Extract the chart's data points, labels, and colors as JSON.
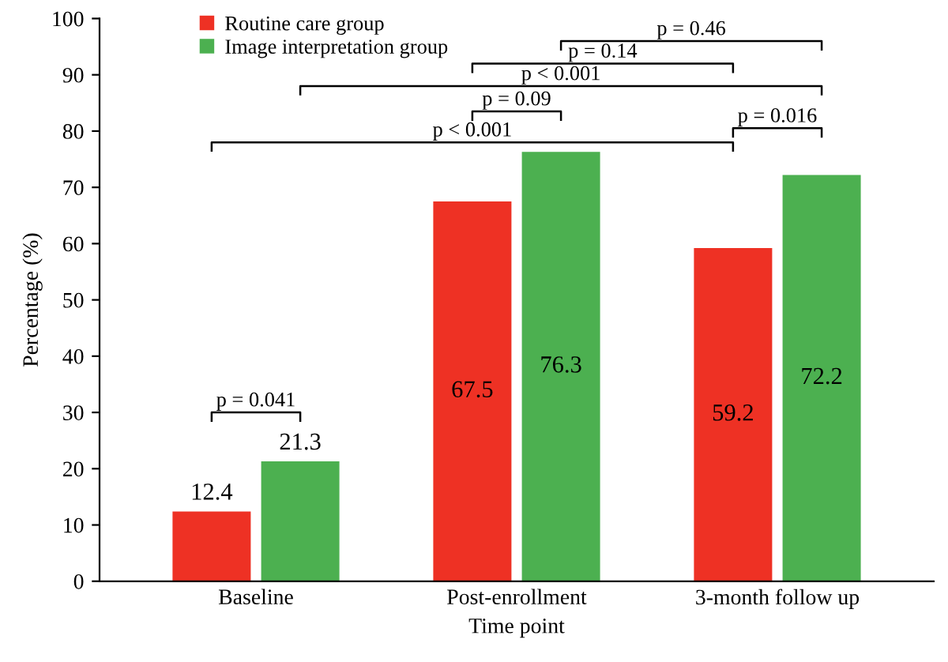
{
  "chart_data": {
    "type": "bar",
    "xlabel": "Time point",
    "ylabel": "Percentage (%)",
    "categories": [
      "Baseline",
      "Post-enrollment",
      "3-month follow up"
    ],
    "series": [
      {
        "name": "Routine care group",
        "color": "#ee3124",
        "values": [
          12.4,
          67.5,
          59.2
        ]
      },
      {
        "name": "Image interpretation group",
        "color": "#4cb050",
        "values": [
          21.3,
          76.3,
          72.2
        ]
      }
    ],
    "ylim": [
      0,
      100
    ],
    "yticks": [
      0,
      10,
      20,
      30,
      40,
      50,
      60,
      70,
      80,
      90,
      100
    ],
    "data_labels": true,
    "grid": false,
    "legend": "top left",
    "annotations": [
      "p = 0.041",
      "p < 0.001",
      "p = 0.09",
      "p < 0.001",
      "p = 0.14",
      "p = 0.46",
      "p = 0.016"
    ]
  }
}
